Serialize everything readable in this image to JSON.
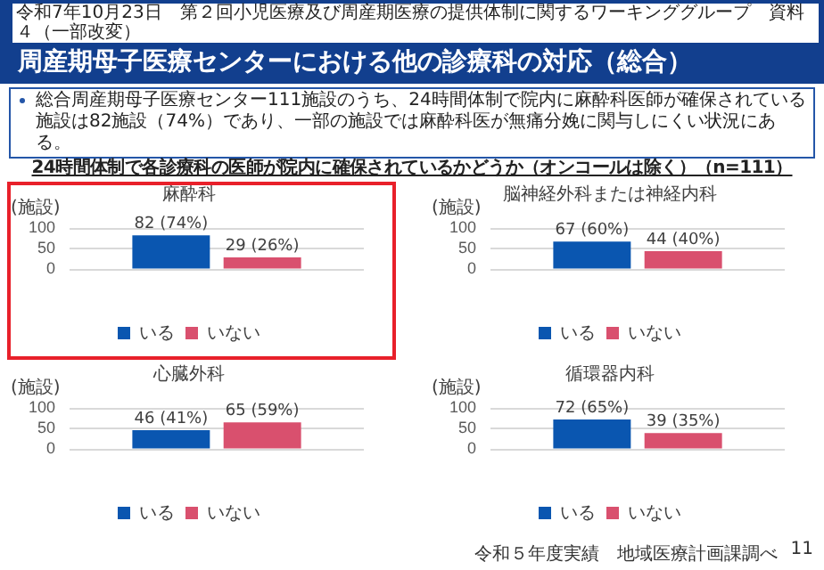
{
  "chart_data": [
    {
      "type": "other",
      "title": "周産期母子医療センターにおける他の診療科の対応（総合）",
      "subtitle": "24時間体制で各診療科の医師が院内に確保されているかどうか（オンコールは除く）（n=111）",
      "annotations": [
        "令和7年10月23日　第２回小児医療及び周産期医療の提供体制に関するワーキンググループ　資料４（一部改変）",
        "総合周産期母子医療センター111施設のうち、24時間体制で院内に麻酔科医師が確保されている施設は82施設（74%）であり、一部の施設では麻酔科医が無痛分娩に関与しにくい状況にある。"
      ]
    },
    {
      "type": "bar",
      "title": "麻酔科",
      "ylabel": "(施設)",
      "categories": [
        null
      ],
      "ylim": [
        0,
        100
      ],
      "yticks": [
        0,
        50,
        100
      ],
      "grid": "y",
      "legend": "bottom",
      "series": [
        {
          "name": "いる",
          "color": "#0a56b0",
          "values": [
            82
          ],
          "value_labels": [
            "82 (74%)"
          ]
        },
        {
          "name": "いない",
          "color": "#d9506e",
          "values": [
            29
          ],
          "value_labels": [
            "29 (26%)"
          ]
        }
      ]
    },
    {
      "type": "bar",
      "title": "脳神経外科または神経内科",
      "ylabel": "(施設)",
      "categories": [
        null
      ],
      "ylim": [
        0,
        100
      ],
      "yticks": [
        0,
        50,
        100
      ],
      "grid": "y",
      "legend": "bottom",
      "series": [
        {
          "name": "いる",
          "color": "#0a56b0",
          "values": [
            67
          ],
          "value_labels": [
            "67 (60%)"
          ]
        },
        {
          "name": "いない",
          "color": "#d9506e",
          "values": [
            44
          ],
          "value_labels": [
            "44 (40%)"
          ]
        }
      ]
    },
    {
      "type": "bar",
      "title": "心臓外科",
      "ylabel": "(施設)",
      "categories": [
        null
      ],
      "ylim": [
        0,
        100
      ],
      "yticks": [
        0,
        50,
        100
      ],
      "grid": "y",
      "legend": "bottom",
      "series": [
        {
          "name": "いる",
          "color": "#0a56b0",
          "values": [
            46
          ],
          "value_labels": [
            "46 (41%)"
          ]
        },
        {
          "name": "いない",
          "color": "#d9506e",
          "values": [
            65
          ],
          "value_labels": [
            "65 (59%)"
          ]
        }
      ]
    },
    {
      "type": "bar",
      "title": "循環器内科",
      "ylabel": "(施設)",
      "categories": [
        null
      ],
      "ylim": [
        0,
        100
      ],
      "yticks": [
        0,
        50,
        100
      ],
      "grid": "y",
      "legend": "bottom",
      "annotations": [
        "令和５年度実績　地域医療計画課調べ",
        "11"
      ],
      "series": [
        {
          "name": "いる",
          "color": "#0a56b0",
          "values": [
            72
          ],
          "value_labels": [
            "72 (65%)"
          ]
        },
        {
          "name": "いない",
          "color": "#d9506e",
          "values": [
            39
          ],
          "value_labels": [
            "39 (35%)"
          ]
        }
      ]
    }
  ]
}
